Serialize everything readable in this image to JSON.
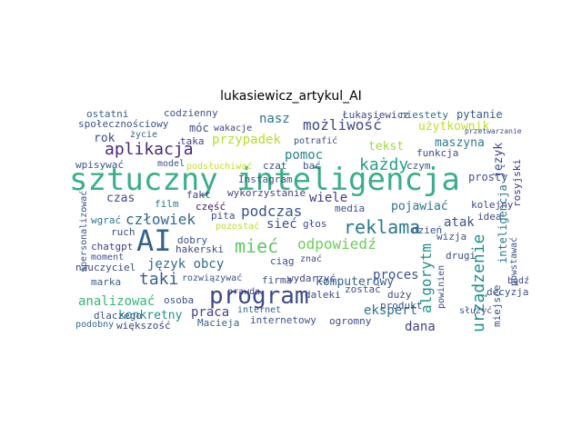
{
  "chart_data": {
    "type": "wordcloud",
    "title": "lukasiewicz_artykul_AI",
    "words": [
      "sztuczny inteligencja",
      "AI",
      "program",
      "mieć",
      "reklama",
      "odpowiedź",
      "aplikacja",
      "człowiek",
      "podczas",
      "każdy",
      "możliwość",
      "pomoc",
      "nasz",
      "przypadek",
      "taki",
      "język obcy",
      "analizować",
      "konkretny",
      "praca",
      "Macieja",
      "proces",
      "komputerowy",
      "ekspert",
      "dana",
      "algorytm",
      "urządzenie",
      "inteligencja",
      "miejsce",
      "rosyjski",
      "wiele",
      "sieć",
      "pojawiać",
      "atak",
      "maszyna",
      "tekst",
      "język",
      "pytanie",
      "użytkownik",
      "niestety",
      "Łukasiewicz",
      "ostatni",
      "codzienny",
      "społecznościowy",
      "móc",
      "wakacje",
      "życie",
      "rok",
      "taka",
      "wpisywać",
      "czas",
      "film",
      "fakt",
      "część",
      "wykorzystanie",
      "Instagram",
      "podsłuchiwać",
      "model",
      "ruch",
      "wgrać",
      "chatgpt",
      "moment",
      "nauczyciel",
      "marka",
      "dlaczego",
      "podobny",
      "większość",
      "osoba",
      "hakerski",
      "dobry",
      "pita",
      "pozostać",
      "rozwiązywać",
      "prawda",
      "internet",
      "internetowy",
      "firma",
      "ciąg",
      "wydarzyć",
      "daleki",
      "zostać",
      "duży",
      "produkt",
      "ogromny",
      "wizja",
      "drugi",
      "dzień",
      "idea",
      "decyzja",
      "kolejny",
      "prosty",
      "funkcja",
      "czym",
      "czat",
      "bać",
      "głos",
      "media",
      "potrafić",
      "znać",
      "powinien",
      "służyć",
      "bądź",
      "spersonalizować",
      "przetwarzanie",
      "powstawać"
    ]
  }
}
